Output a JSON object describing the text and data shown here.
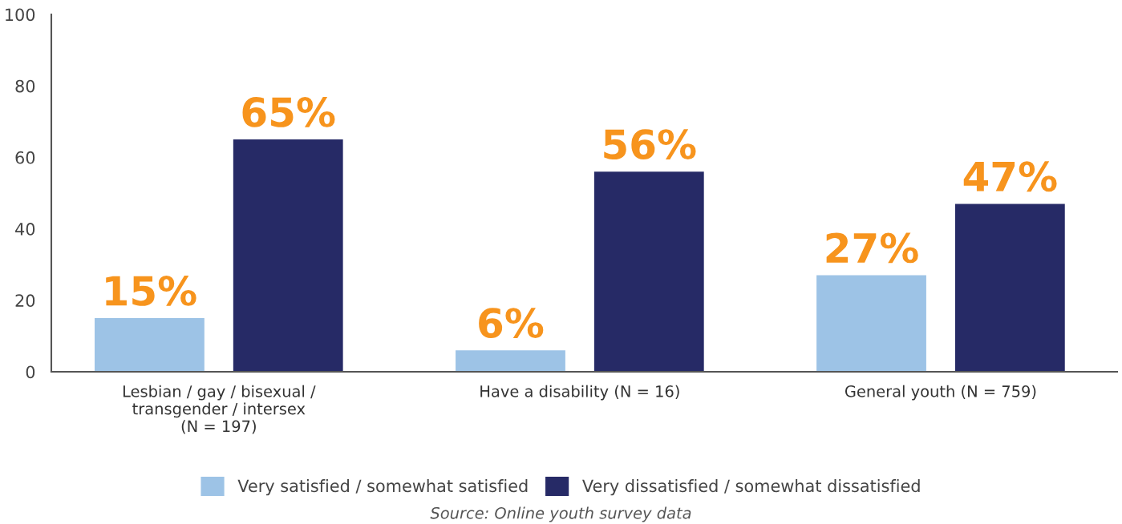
{
  "chart_data": {
    "type": "bar",
    "categories": [
      "Lesbian / gay / bisexual /\ntransgender / intersex\n(N = 197)",
      "Have a disability (N = 16)",
      "General youth (N = 759)"
    ],
    "series": [
      {
        "name": "Very satisfied / somewhat satisfied",
        "color": "#9dc3e6",
        "values": [
          15,
          6,
          27
        ],
        "value_labels": [
          "15%",
          "6%",
          "27%"
        ]
      },
      {
        "name": "Very dissatisfied / somewhat dissatisfied",
        "color": "#262a66",
        "values": [
          65,
          56,
          47
        ],
        "value_labels": [
          "65%",
          "56%",
          "47%"
        ]
      }
    ],
    "ylim": [
      0,
      100
    ],
    "yticks": [
      0,
      20,
      40,
      60,
      80,
      100
    ],
    "grid": false,
    "legend": "bottom",
    "annotations": [
      "Source: Online youth survey data"
    ]
  }
}
